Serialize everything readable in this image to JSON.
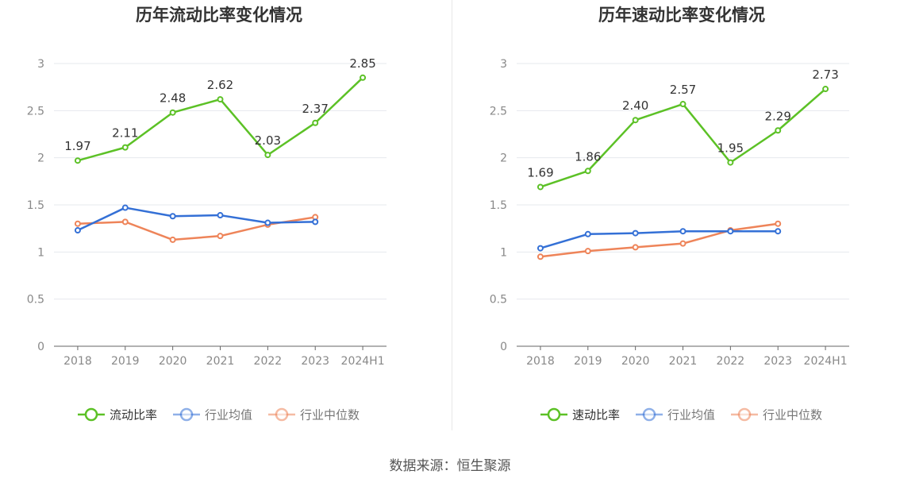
{
  "source_text": "数据来源：恒生聚源",
  "colors": {
    "primary": "#5cc126",
    "industry_avg": "#3470d6",
    "industry_median": "#ee8459",
    "axis": "#666666",
    "grid": "#e6e8ee",
    "label": "#333333",
    "tick_text": "#888888"
  },
  "chart_data": [
    {
      "type": "line",
      "title": "历年流动比率变化情况",
      "categories": [
        "2018",
        "2019",
        "2020",
        "2021",
        "2022",
        "2023",
        "2024H1"
      ],
      "y_ticks": [
        "0",
        "0.5",
        "1",
        "1.5",
        "2",
        "2.5",
        "3"
      ],
      "ylim": [
        0,
        3
      ],
      "grid": true,
      "legend_position": "bottom",
      "series": [
        {
          "name": "流动比率",
          "color": "#5cc126",
          "labeled": true,
          "values": [
            1.97,
            2.11,
            2.48,
            2.62,
            2.03,
            2.37,
            2.85
          ],
          "labels": [
            "1.97",
            "2.11",
            "2.48",
            "2.62",
            "2.03",
            "2.37",
            "2.85"
          ]
        },
        {
          "name": "行业均值",
          "color": "#3470d6",
          "labeled": false,
          "values": [
            1.23,
            1.47,
            1.38,
            1.39,
            1.31,
            1.32,
            null
          ]
        },
        {
          "name": "行业中位数",
          "color": "#ee8459",
          "labeled": false,
          "values": [
            1.3,
            1.32,
            1.13,
            1.17,
            1.29,
            1.37,
            null
          ]
        }
      ]
    },
    {
      "type": "line",
      "title": "历年速动比率变化情况",
      "categories": [
        "2018",
        "2019",
        "2020",
        "2021",
        "2022",
        "2023",
        "2024H1"
      ],
      "y_ticks": [
        "0",
        "0.5",
        "1",
        "1.5",
        "2",
        "2.5",
        "3"
      ],
      "ylim": [
        0,
        3
      ],
      "grid": true,
      "legend_position": "bottom",
      "series": [
        {
          "name": "速动比率",
          "color": "#5cc126",
          "labeled": true,
          "values": [
            1.69,
            1.86,
            2.4,
            2.57,
            1.95,
            2.29,
            2.73
          ],
          "labels": [
            "1.69",
            "1.86",
            "2.40",
            "2.57",
            "1.95",
            "2.29",
            "2.73"
          ]
        },
        {
          "name": "行业均值",
          "color": "#3470d6",
          "labeled": false,
          "values": [
            1.04,
            1.19,
            1.2,
            1.22,
            1.22,
            1.22,
            null
          ]
        },
        {
          "name": "行业中位数",
          "color": "#ee8459",
          "labeled": false,
          "values": [
            0.95,
            1.01,
            1.05,
            1.09,
            1.23,
            1.3,
            null
          ]
        }
      ]
    }
  ]
}
